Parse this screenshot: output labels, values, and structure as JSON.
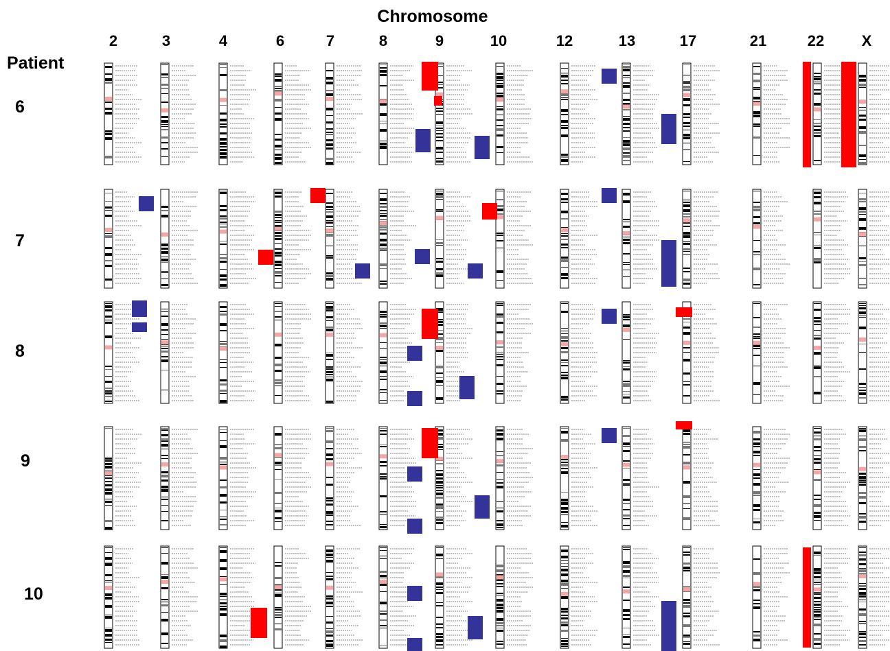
{
  "figure": {
    "title": "Chromosome",
    "row_header": "Patient",
    "chromosomes": [
      "2",
      "3",
      "4",
      "6",
      "7",
      "8",
      "9",
      "10",
      "12",
      "13",
      "17",
      "21",
      "22",
      "X"
    ],
    "patients": [
      "6",
      "7",
      "8",
      "9",
      "10"
    ],
    "colors": {
      "gain": "#ff0000",
      "loss": "#333399",
      "centromere": "#f4a6a6",
      "band": "#000000",
      "outline": "#000000"
    }
  }
}
